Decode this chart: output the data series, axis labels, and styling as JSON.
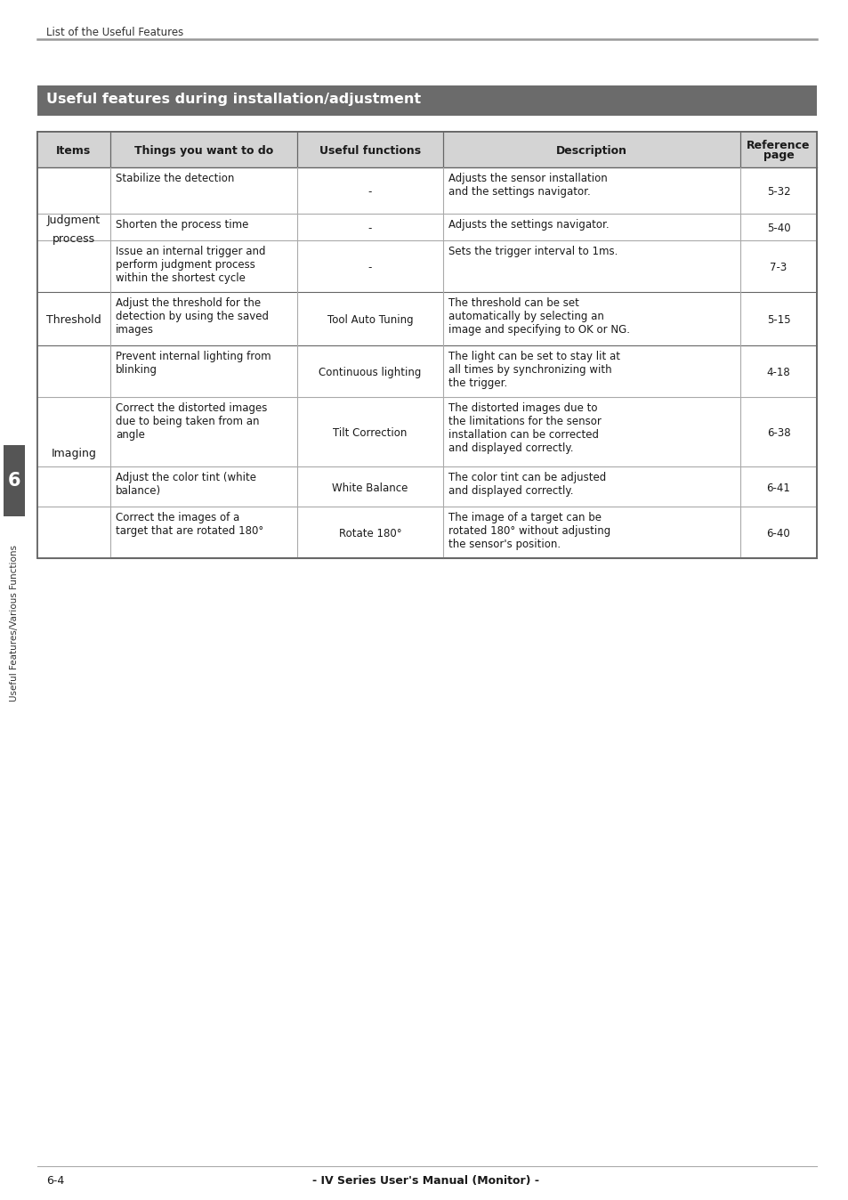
{
  "page_header": "List of the Useful Features",
  "section_title": "Useful features during installation/adjustment",
  "section_title_bg": "#6b6b6b",
  "section_title_color": "#ffffff",
  "header_row": [
    "Items",
    "Things you want to do",
    "Useful functions",
    "Description",
    "Reference\npage"
  ],
  "header_bg": "#d4d4d4",
  "table_rows": [
    {
      "item": "Judgment\nprocess",
      "sub_rows": [
        {
          "things": "Stabilize the detection",
          "functions": "-",
          "description": "Adjusts the sensor installation\nand the settings navigator.",
          "ref": "5-32"
        },
        {
          "things": "Shorten the process time",
          "functions": "-",
          "description": "Adjusts the settings navigator.",
          "ref": "5-40"
        },
        {
          "things": "Issue an internal trigger and\nperform judgment process\nwithin the shortest cycle",
          "functions": "-",
          "description": "Sets the trigger interval to 1ms.",
          "ref": "7-3"
        }
      ]
    },
    {
      "item": "Threshold",
      "sub_rows": [
        {
          "things": "Adjust the threshold for the\ndetection by using the saved\nimages",
          "functions": "Tool Auto Tuning",
          "description": "The threshold can be set\nautomatically by selecting an\nimage and specifying to OK or NG.",
          "ref": "5-15"
        }
      ]
    },
    {
      "item": "Imaging",
      "sub_rows": [
        {
          "things": "Prevent internal lighting from\nblinking",
          "functions": "Continuous lighting",
          "description": "The light can be set to stay lit at\nall times by synchronizing with\nthe trigger.",
          "ref": "4-18"
        },
        {
          "things": "Correct the distorted images\ndue to being taken from an\nangle",
          "functions": "Tilt Correction",
          "description": "The distorted images due to\nthe limitations for the sensor\ninstallation can be corrected\nand displayed correctly.",
          "ref": "6-38"
        },
        {
          "things": "Adjust the color tint (white\nbalance)",
          "functions": "White Balance",
          "description": "The color tint can be adjusted\nand displayed correctly.",
          "ref": "6-41"
        },
        {
          "things": "Correct the images of a\ntarget that are rotated 180°",
          "functions": "Rotate 180°",
          "description": "The image of a target can be\nrotated 180° without adjusting\nthe sensor's position.",
          "ref": "6-40"
        }
      ]
    }
  ],
  "sub_row_heights": [
    52,
    30,
    58,
    60,
    58,
    78,
    45,
    58
  ],
  "footer_left": "6-4",
  "footer_center": "- IV Series User's Manual (Monitor) -",
  "sidebar_text": "Useful Features/Various Functions",
  "sidebar_number": "6",
  "bg_color": "#ffffff",
  "border_color": "#666666",
  "line_color": "#aaaaaa",
  "text_color": "#1a1a1a"
}
